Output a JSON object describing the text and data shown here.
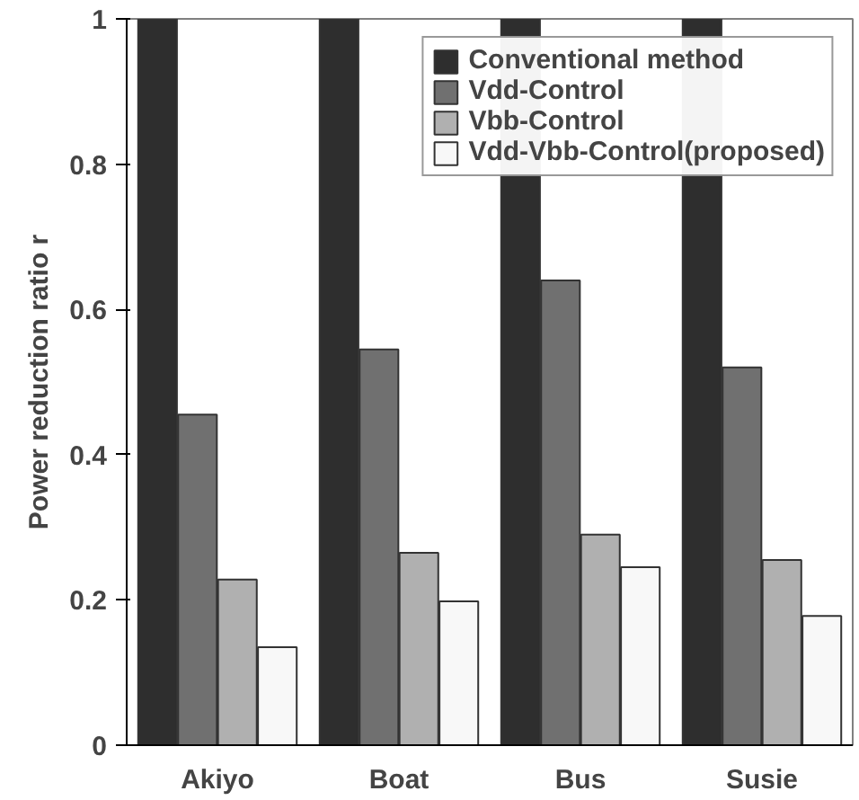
{
  "chart_data": {
    "type": "bar",
    "ylabel": "Power reduction ratio r",
    "categories": [
      "Akiyo",
      "Boat",
      "Bus",
      "Susie"
    ],
    "series": [
      {
        "name": "Conventional method",
        "color": "#2e2e2e",
        "values": [
          1,
          1,
          1,
          1
        ]
      },
      {
        "name": "Vdd-Control",
        "color": "#707070",
        "values": [
          0.455,
          0.545,
          0.64,
          0.52
        ]
      },
      {
        "name": "Vbb-Control",
        "color": "#b0b0b0",
        "values": [
          0.228,
          0.265,
          0.29,
          0.255
        ]
      },
      {
        "name": "Vdd-Vbb-Control(proposed)",
        "color": "#f8f8f8",
        "values": [
          0.135,
          0.198,
          0.245,
          0.178
        ]
      }
    ],
    "ylim": [
      0,
      1
    ],
    "yticks": [
      0,
      0.2,
      0.4,
      0.6,
      0.8,
      1
    ],
    "grid": false,
    "legend": "top right"
  }
}
